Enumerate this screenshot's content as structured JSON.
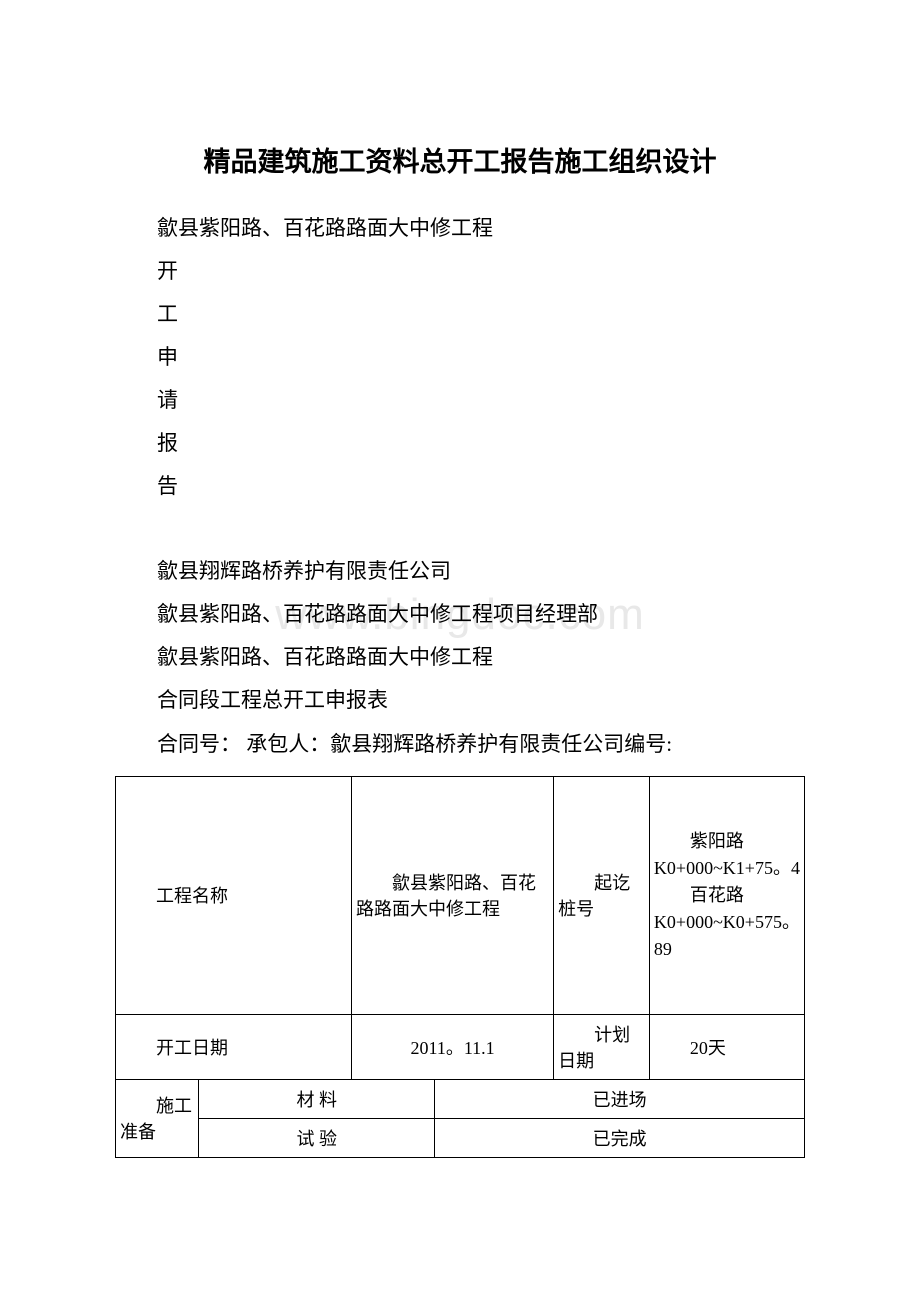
{
  "watermark": "www.bingdoc.com",
  "title": "精品建筑施工资料总开工报告施工组织设计",
  "lines": {
    "l1": "歙县紫阳路、百花路路面大中修工程",
    "l2": "开",
    "l3": "工",
    "l4": "申",
    "l5": "请",
    "l6": "报",
    "l7": "告",
    "l8": "歙县翔辉路桥养护有限责任公司",
    "l9": "歙县紫阳路、百花路路面大中修工程项目经理部",
    "l10": "歙县紫阳路、百花路路面大中修工程",
    "l11": "合同段工程总开工申报表",
    "l12": "合同号：  承包人：歙县翔辉路桥养护有限责任公司编号:"
  },
  "table": {
    "row1": {
      "c1": "工程名称",
      "c2": "歙县紫阳路、百花路路面大中修工程",
      "c3": "起讫桩号",
      "c4a": "紫阳路K0+000~K1+75。4",
      "c4b": "百花路K0+000~K0+575。89"
    },
    "row2": {
      "c1": "开工日期",
      "c2": "2011。11.1",
      "c3": "计划日期",
      "c4": "20天"
    },
    "row3": {
      "c1": "施工准备",
      "c2": "材 料",
      "c3": "已进场"
    },
    "row4": {
      "c2": "试 验",
      "c3": "已完成"
    }
  },
  "style": {
    "background_color": "#ffffff",
    "text_color": "#000000",
    "watermark_color": "#e8e8e8",
    "border_color": "#000000",
    "title_fontsize": 27,
    "body_fontsize": 21,
    "table_fontsize": 18,
    "line_height": 2.05
  }
}
